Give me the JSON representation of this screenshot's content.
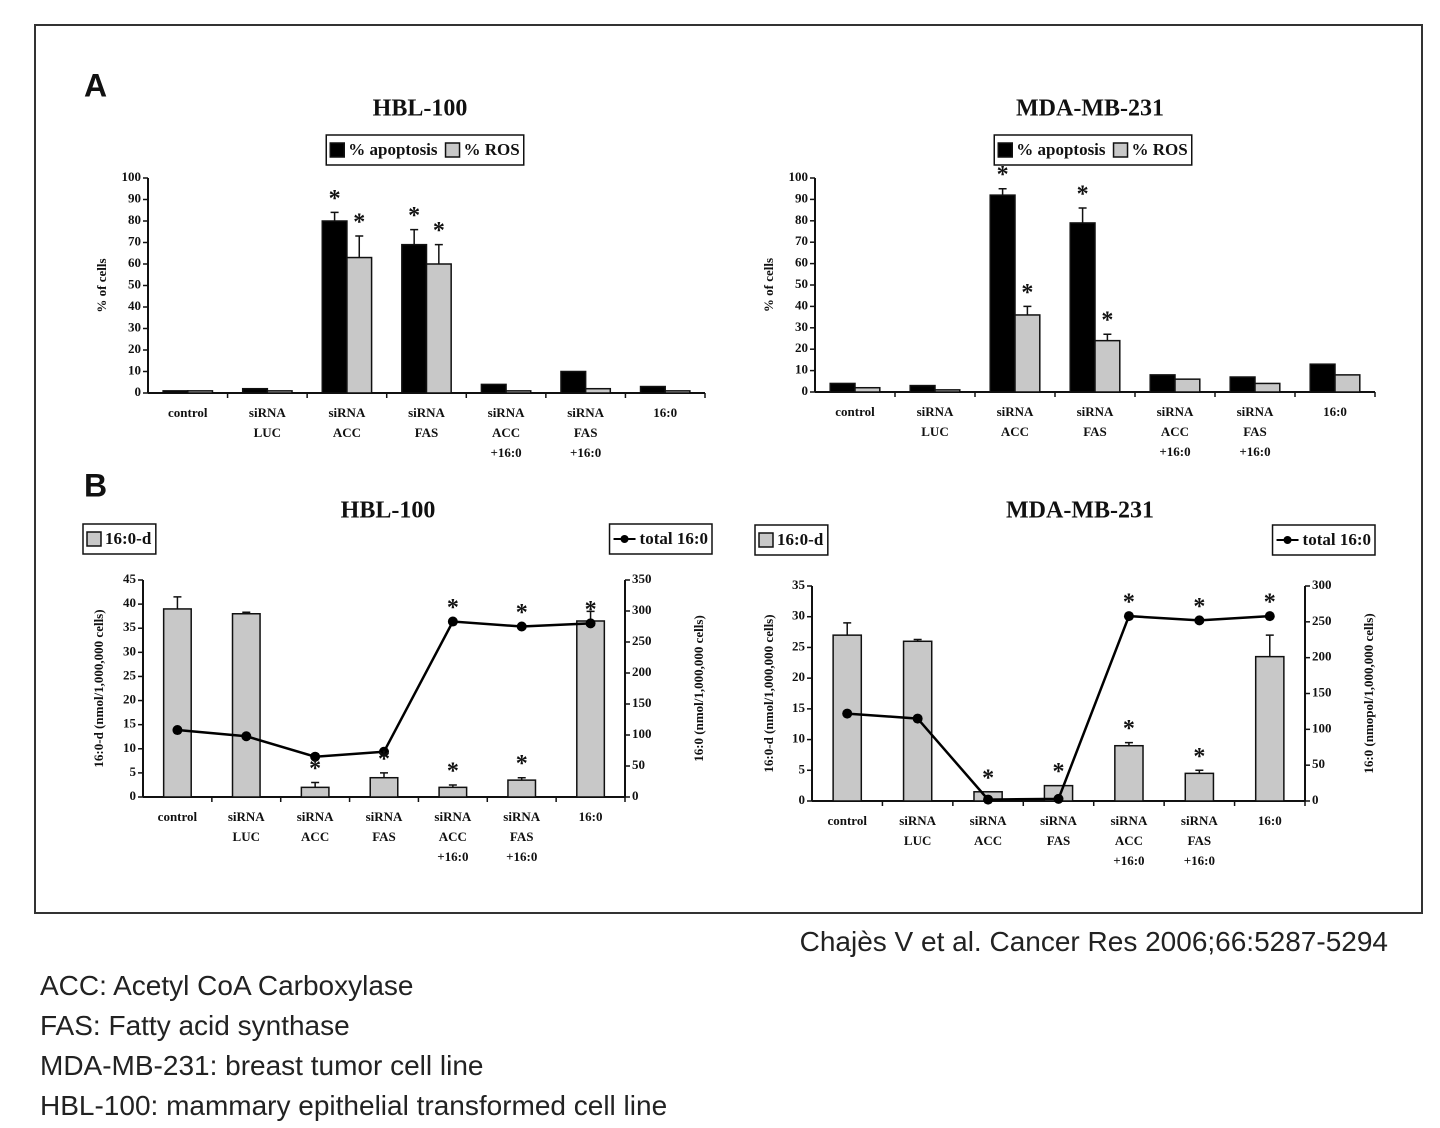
{
  "panel_labels": [
    "A",
    "B"
  ],
  "citation": "Chajès V et al. Cancer Res 2006;66:5287-5294",
  "notes": [
    "ACC: Acetyl CoA Carboxylase",
    "FAS: Fatty acid synthase",
    "MDA-MB-231: breast tumor cell line",
    "HBL-100: mammary epithelial transformed cell line"
  ],
  "chart_data": [
    {
      "type": "bar",
      "title": "HBL-100",
      "ylabel": "% of cells",
      "categories": [
        "control",
        "siRNA\nLUC",
        "siRNA\nACC",
        "siRNA\nFAS",
        "siRNA\nACC\n+16:0",
        "siRNA\nFAS\n+16:0",
        "16:0"
      ],
      "series": [
        {
          "name": "% apoptosis",
          "color": "#000000",
          "values": [
            1,
            2,
            80,
            69,
            4,
            10,
            3
          ],
          "errors": [
            0,
            0,
            4,
            7,
            0,
            0,
            0
          ]
        },
        {
          "name": "% ROS",
          "color": "#c8c8c8",
          "values": [
            1,
            1,
            63,
            60,
            1,
            2,
            1
          ],
          "errors": [
            0,
            0,
            10,
            9,
            0,
            0,
            0
          ]
        }
      ],
      "annotations": [
        {
          "text": "*",
          "series": 0,
          "index": 2
        },
        {
          "text": "*",
          "series": 1,
          "index": 2
        },
        {
          "text": "*",
          "series": 0,
          "index": 3
        },
        {
          "text": "*",
          "series": 1,
          "index": 3
        }
      ],
      "ylim": [
        0,
        100
      ],
      "yticks": [
        0,
        10,
        20,
        30,
        40,
        50,
        60,
        70,
        80,
        90,
        100
      ],
      "legend": "top"
    },
    {
      "type": "bar",
      "title": "MDA-MB-231",
      "ylabel": "% of cells",
      "categories": [
        "control",
        "siRNA\nLUC",
        "siRNA\nACC",
        "siRNA\nFAS",
        "siRNA\nACC\n+16:0",
        "siRNA\nFAS\n+16:0",
        "16:0"
      ],
      "series": [
        {
          "name": "% apoptosis",
          "color": "#000000",
          "values": [
            4,
            3,
            92,
            79,
            8,
            7,
            13
          ],
          "errors": [
            0,
            0,
            3,
            7,
            0,
            0,
            0
          ]
        },
        {
          "name": "% ROS",
          "color": "#c8c8c8",
          "values": [
            2,
            1,
            36,
            24,
            6,
            4,
            8
          ],
          "errors": [
            0,
            0,
            4,
            3,
            0,
            0,
            0
          ]
        }
      ],
      "annotations": [
        {
          "text": "*",
          "series": 0,
          "index": 2
        },
        {
          "text": "*",
          "series": 1,
          "index": 2
        },
        {
          "text": "*",
          "series": 0,
          "index": 3
        },
        {
          "text": "*",
          "series": 1,
          "index": 3
        }
      ],
      "ylim": [
        0,
        100
      ],
      "yticks": [
        0,
        10,
        20,
        30,
        40,
        50,
        60,
        70,
        80,
        90,
        100
      ],
      "legend": "top"
    },
    {
      "type": "combo",
      "title": "HBL-100",
      "ylabel": "16:0-d (nmol/1,000,000 cells)",
      "y2label": "16:0 (nmol/1,000,000 cells)",
      "categories": [
        "control",
        "siRNA\nLUC",
        "siRNA\nACC",
        "siRNA\nFAS",
        "siRNA\nACC\n+16:0",
        "siRNA\nFAS\n+16:0",
        "16:0"
      ],
      "series": [
        {
          "name": "16:0-d",
          "color": "#c8c8c8",
          "values": [
            39,
            38,
            2,
            4,
            2,
            3.5,
            36.5
          ],
          "errors": [
            2.5,
            0.3,
            1,
            1,
            0.5,
            0.5,
            2
          ]
        },
        {
          "name": "total 16:0",
          "color": "#000000",
          "axis": "y2",
          "values": [
            108,
            98,
            65,
            73,
            283,
            275,
            280
          ]
        }
      ],
      "annotations": [
        {
          "text": "*",
          "series": 0,
          "index": 2
        },
        {
          "text": "*",
          "series": 0,
          "index": 3
        },
        {
          "text": "*",
          "series": 0,
          "index": 4
        },
        {
          "text": "*",
          "series": 0,
          "index": 5
        },
        {
          "text": "*",
          "series": 1,
          "index": 4
        },
        {
          "text": "*",
          "series": 1,
          "index": 5
        },
        {
          "text": "*",
          "series": 1,
          "index": 6
        }
      ],
      "ylim": [
        0,
        45
      ],
      "yticks": [
        0,
        5,
        10,
        15,
        20,
        25,
        30,
        35,
        40,
        45
      ],
      "y2lim": [
        0,
        350
      ],
      "y2ticks": [
        0,
        50,
        100,
        150,
        200,
        250,
        300,
        350
      ],
      "legend": "top-left and top-right"
    },
    {
      "type": "combo",
      "title": "MDA-MB-231",
      "ylabel": "16:0-d (nmol/1,000,000 cells)",
      "y2label": "16:0 (nmopol/1,000,000 cells)",
      "categories": [
        "control",
        "siRNA\nLUC",
        "siRNA\nACC",
        "siRNA\nFAS",
        "siRNA\nACC\n+16:0",
        "siRNA\nFAS\n+16:0",
        "16:0"
      ],
      "series": [
        {
          "name": "16:0-d",
          "color": "#c8c8c8",
          "values": [
            27,
            26,
            1.5,
            2.5,
            9,
            4.5,
            23.5
          ],
          "errors": [
            2,
            0.3,
            0,
            0,
            0.5,
            0.5,
            3.5
          ]
        },
        {
          "name": "total 16:0",
          "color": "#000000",
          "axis": "y2",
          "values": [
            122,
            115,
            2,
            3,
            258,
            252,
            258
          ]
        }
      ],
      "annotations": [
        {
          "text": "*",
          "series": 0,
          "index": 2
        },
        {
          "text": "*",
          "series": 0,
          "index": 3
        },
        {
          "text": "*",
          "series": 0,
          "index": 4
        },
        {
          "text": "*",
          "series": 0,
          "index": 5
        },
        {
          "text": "*",
          "series": 1,
          "index": 4
        },
        {
          "text": "*",
          "series": 1,
          "index": 5
        },
        {
          "text": "*",
          "series": 1,
          "index": 6
        }
      ],
      "ylim": [
        0,
        35
      ],
      "yticks": [
        0,
        5,
        10,
        15,
        20,
        25,
        30,
        35
      ],
      "y2lim": [
        0,
        300
      ],
      "y2ticks": [
        0,
        50,
        100,
        150,
        200,
        250,
        300
      ],
      "legend": "top-left and top-right"
    }
  ]
}
